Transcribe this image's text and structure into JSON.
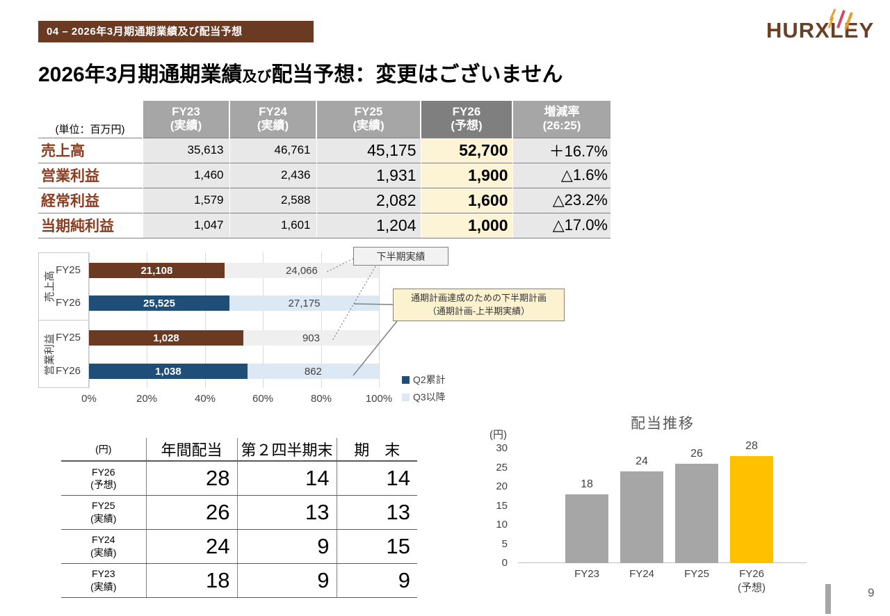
{
  "header": {
    "badge": "04 – 2026年3月期通期業績及び配当予想",
    "logo_text": "HURXLEY",
    "title_part1": "2026年3月期通期業績",
    "title_part2": "及び",
    "title_part3": "配当予想：変更はございません"
  },
  "financial_table": {
    "unit_label": "(単位：百万円)",
    "columns": [
      {
        "line1": "FY23",
        "line2": "(実績)"
      },
      {
        "line1": "FY24",
        "line2": "(実績)"
      },
      {
        "line1": "FY25",
        "line2": "(実績)"
      },
      {
        "line1": "FY26",
        "line2": "(予想)"
      },
      {
        "line1": "増減率",
        "line2": "(26:25)"
      }
    ],
    "rows": [
      {
        "label": "売上高",
        "values": [
          "35,613",
          "46,761",
          "45,175",
          "52,700",
          "＋16.7%"
        ]
      },
      {
        "label": "営業利益",
        "values": [
          "1,460",
          "2,436",
          "1,931",
          "1,900",
          "△1.6%"
        ]
      },
      {
        "label": "経常利益",
        "values": [
          "1,579",
          "2,588",
          "2,082",
          "1,600",
          "△23.2%"
        ]
      },
      {
        "label": "当期純利益",
        "values": [
          "1,047",
          "1,601",
          "1,204",
          "1,000",
          "△17.0%"
        ]
      }
    ]
  },
  "chart_data": [
    {
      "type": "bar",
      "subtype": "horizontal-stacked-100pct",
      "group_labels": [
        "売上高",
        "営業利益"
      ],
      "row_axis_labels": [
        "FY25",
        "FY26",
        "FY25",
        "FY26"
      ],
      "rows": [
        {
          "group": "売上高",
          "fy": "FY25",
          "segments": [
            {
              "name": "Q2累計",
              "value": 21108,
              "label": "21,108",
              "color": "#6a3a22",
              "text": "#ffffff"
            },
            {
              "name": "Q3以降",
              "value": 24066,
              "label": "24,066",
              "color": "#efefef",
              "text": "#404040"
            }
          ]
        },
        {
          "group": "売上高",
          "fy": "FY26",
          "segments": [
            {
              "name": "Q2累計",
              "value": 25525,
              "label": "25,525",
              "color": "#1f4e79",
              "text": "#ffffff"
            },
            {
              "name": "Q3以降",
              "value": 27175,
              "label": "27,175",
              "color": "#dce9f5",
              "text": "#404040"
            }
          ]
        },
        {
          "group": "営業利益",
          "fy": "FY25",
          "segments": [
            {
              "name": "Q2累計",
              "value": 1028,
              "label": "1,028",
              "color": "#6a3a22",
              "text": "#ffffff"
            },
            {
              "name": "Q3以降",
              "value": 903,
              "label": "903",
              "color": "#efefef",
              "text": "#404040"
            }
          ]
        },
        {
          "group": "営業利益",
          "fy": "FY26",
          "segments": [
            {
              "name": "Q2累計",
              "value": 1038,
              "label": "1,038",
              "color": "#1f4e79",
              "text": "#ffffff"
            },
            {
              "name": "Q3以降",
              "value": 862,
              "label": "862",
              "color": "#dce9f5",
              "text": "#404040"
            }
          ]
        }
      ],
      "x_ticks": [
        "0%",
        "20%",
        "40%",
        "60%",
        "80%",
        "100%"
      ],
      "legend": [
        {
          "label": "Q2累計",
          "color": "#1f4e79"
        },
        {
          "label": "Q3以降",
          "color": "#dce9f5"
        }
      ],
      "annotations": [
        {
          "text_lines": [
            "下半期実績"
          ]
        },
        {
          "text_lines": [
            "通期計画達成のための下半期計画",
            "（通期計画-上半期実績）"
          ]
        }
      ]
    },
    {
      "type": "bar",
      "title": "配当推移",
      "unit": "(円)",
      "categories": [
        "FY23",
        "FY24",
        "FY25",
        "FY26\n(予想)"
      ],
      "values": [
        18,
        24,
        26,
        28
      ],
      "bar_colors": [
        "#a6a6a6",
        "#a6a6a6",
        "#a6a6a6",
        "#ffc000"
      ],
      "ylim": [
        0,
        30
      ],
      "yticks": [
        0,
        5,
        10,
        15,
        20,
        25,
        30
      ]
    }
  ],
  "dividend_table": {
    "unit_label": "(円)",
    "columns": [
      "年間配当",
      "第２四半期末",
      "期　末"
    ],
    "rows": [
      {
        "label_line1": "FY26",
        "label_line2": "(予想)",
        "values": [
          "28",
          "14",
          "14"
        ]
      },
      {
        "label_line1": "FY25",
        "label_line2": "(実績)",
        "values": [
          "26",
          "13",
          "13"
        ]
      },
      {
        "label_line1": "FY24",
        "label_line2": "(実績)",
        "values": [
          "24",
          "9",
          "15"
        ]
      },
      {
        "label_line1": "FY23",
        "label_line2": "(実績)",
        "values": [
          "18",
          "9",
          "9"
        ]
      }
    ]
  },
  "footer": {
    "page_number": "9"
  },
  "colors": {
    "brand_brown": "#6a3a22",
    "navy": "#1f4e79",
    "light_blue": "#dce9f5",
    "light_gray_segment": "#efefef",
    "fy26_highlight": "#fdf3d5",
    "header_gray": "#a6a6a6",
    "header_dark_gray": "#7f7f7f",
    "dividend_orange": "#ffc000"
  }
}
